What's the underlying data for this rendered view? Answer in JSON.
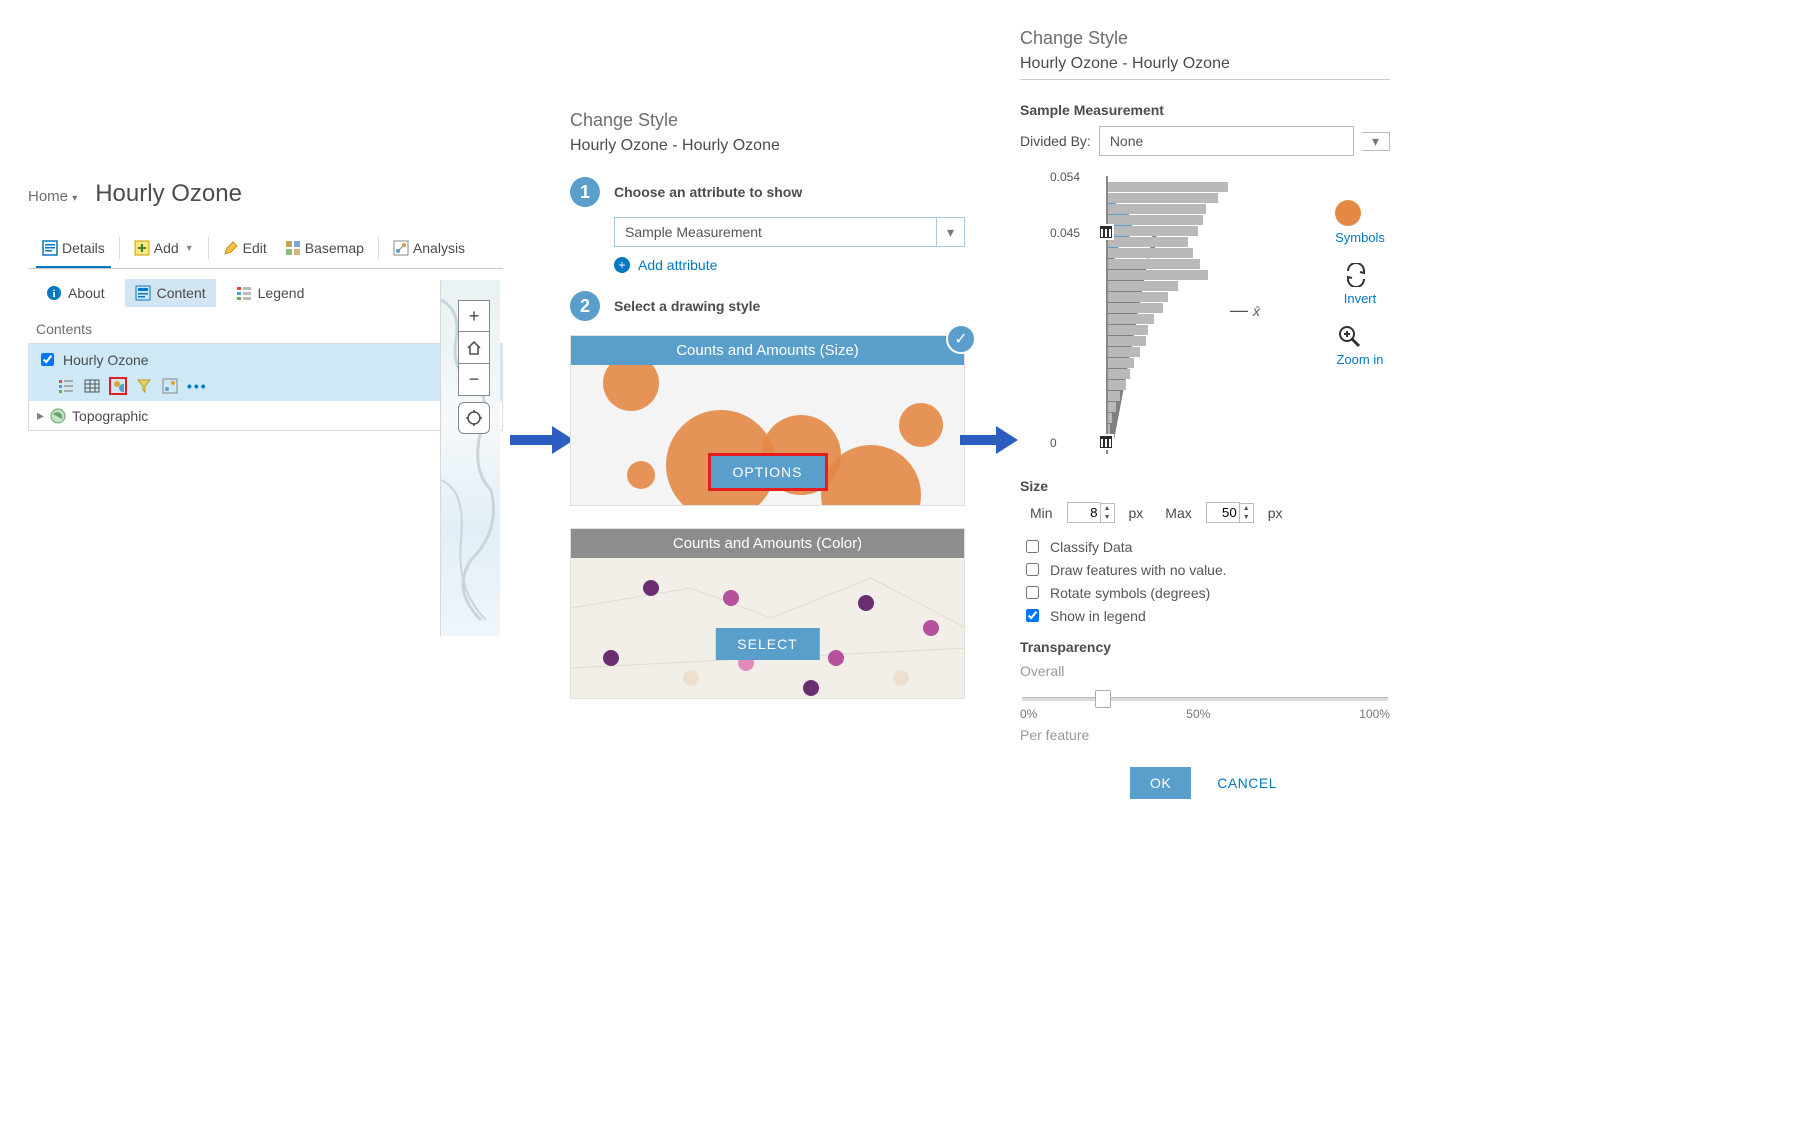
{
  "panel1": {
    "home": "Home",
    "title": "Hourly Ozone",
    "toolbar": {
      "details": "Details",
      "add": "Add",
      "edit": "Edit",
      "basemap": "Basemap",
      "analysis": "Analysis"
    },
    "subtabs": {
      "about": "About",
      "content": "Content",
      "legend": "Legend"
    },
    "contents_label": "Contents",
    "layer1": "Hourly Ozone",
    "layer2": "Topographic",
    "more": "•••"
  },
  "panel2": {
    "heading": "Change Style",
    "subtitle": "Hourly Ozone - Hourly Ozone",
    "step1": "Choose an attribute to show",
    "attribute_value": "Sample Measurement",
    "add_attribute": "Add attribute",
    "step2": "Select a drawing style",
    "style_size": "Counts and Amounts (Size)",
    "options": "OPTIONS",
    "style_color": "Counts and Amounts (Color)",
    "select": "SELECT"
  },
  "panel3": {
    "heading": "Change Style",
    "subtitle": "Hourly Ozone - Hourly Ozone",
    "section": "Sample Measurement",
    "divided_by": "Divided By:",
    "divided_by_value": "None",
    "ticks": {
      "top": "0.054",
      "mid": "0.045",
      "bottom": "0"
    },
    "hist_bars": [
      120,
      110,
      98,
      95,
      90,
      80,
      85,
      92,
      100,
      70,
      60,
      55,
      46,
      40,
      38,
      32,
      26,
      22,
      18,
      12,
      8,
      4,
      2,
      1
    ],
    "xbar": "x̄",
    "side": {
      "symbols": "Symbols",
      "invert": "Invert",
      "zoomin": "Zoom in"
    },
    "size_label": "Size",
    "min_label": "Min",
    "min_value": "8",
    "px": "px",
    "max_label": "Max",
    "max_value": "50",
    "cb": {
      "classify": "Classify Data",
      "novalue": "Draw features with no value.",
      "rotate": "Rotate symbols (degrees)",
      "legend": "Show in legend"
    },
    "transparency": "Transparency",
    "overall": "Overall",
    "slider_pos_pct": 22,
    "t0": "0%",
    "t50": "50%",
    "t100": "100%",
    "perfeature": "Per feature",
    "ok": "OK",
    "cancel": "CANCEL"
  },
  "colors": {
    "orange": "#e38845",
    "purple_dark": "#6a2d6f",
    "purple_mid": "#b64f9c",
    "pink": "#e28bbb",
    "beige": "#efdfcf"
  }
}
